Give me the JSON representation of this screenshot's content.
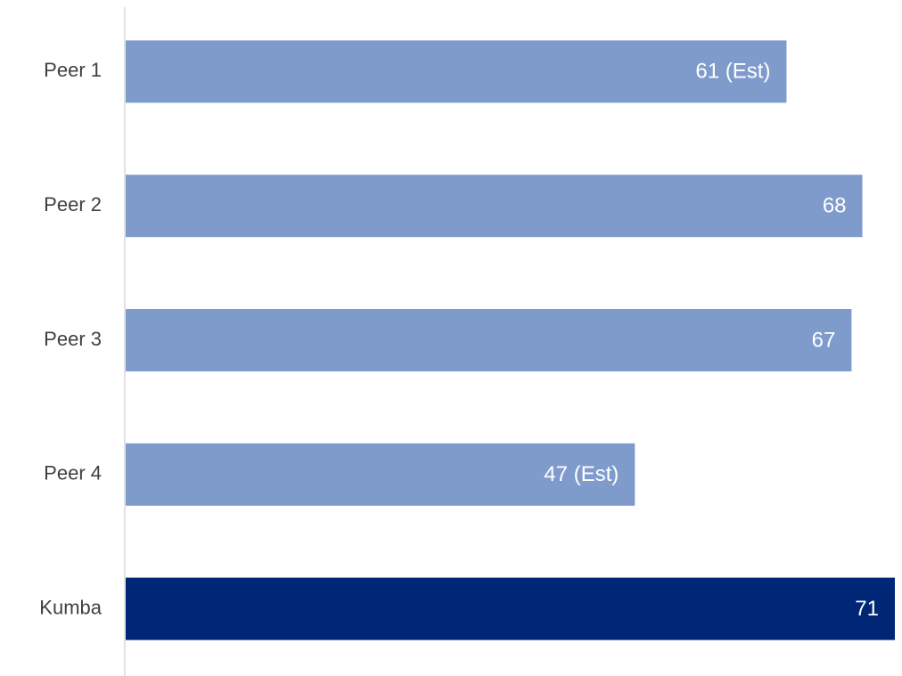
{
  "chart_data": {
    "type": "hbar",
    "categories": [
      "Peer 1",
      "Peer 2",
      "Peer 3",
      "Peer 4",
      "Kumba"
    ],
    "values": [
      61,
      68,
      67,
      47,
      71
    ],
    "value_labels": [
      "61 (Est)",
      "68",
      "67",
      "47 (Est)",
      "71"
    ],
    "colors": [
      "#7f9bcb",
      "#7f9bcb",
      "#7f9bcb",
      "#7f9bcb",
      "#002776"
    ]
  }
}
